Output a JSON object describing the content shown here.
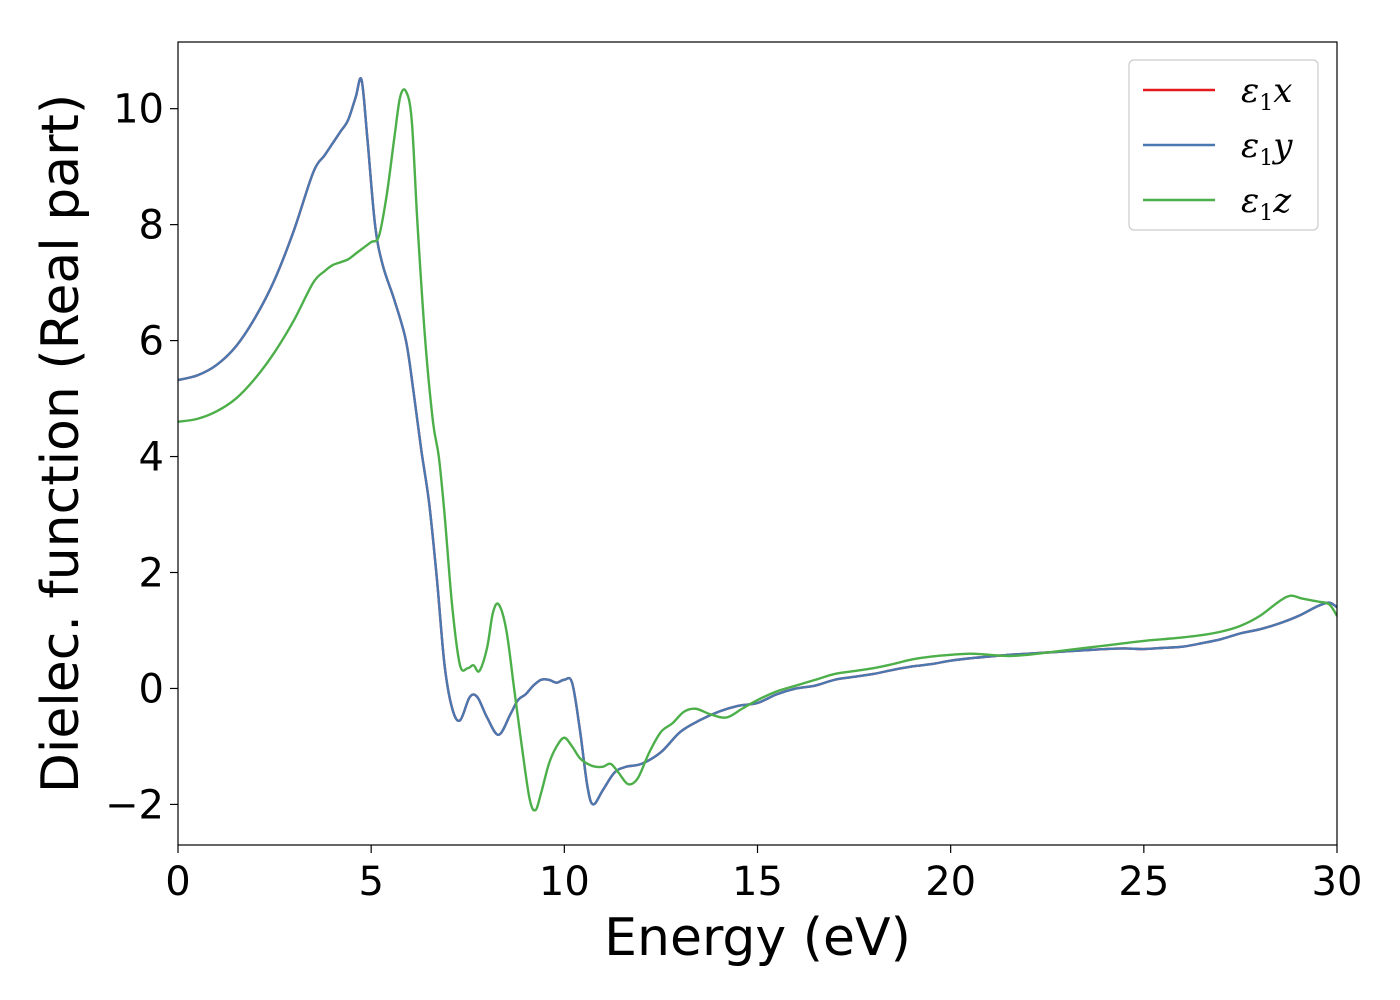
{
  "chart_data": {
    "type": "line",
    "xlabel": "Energy (eV)",
    "ylabel": "Dielec. function (Real part)",
    "xlim": [
      0,
      30
    ],
    "ylim": [
      -2.7,
      11.15
    ],
    "xticks": [
      0,
      5,
      10,
      15,
      20,
      25,
      30
    ],
    "yticks": [
      -2,
      0,
      2,
      4,
      6,
      8,
      10
    ],
    "grid": false,
    "legend_position": "top-right",
    "series": [
      {
        "name": "ε1x",
        "legend_sub": "1",
        "legend_base": "ε",
        "legend_suffix": "x",
        "color": "#e41a1c",
        "x": [
          0,
          0.5,
          1,
          1.5,
          2,
          2.5,
          3,
          3.5,
          3.8,
          4.0,
          4.2,
          4.4,
          4.6,
          4.75,
          4.9,
          5.1,
          5.3,
          5.6,
          5.9,
          6.1,
          6.3,
          6.5,
          6.7,
          6.9,
          7.1,
          7.3,
          7.55,
          7.75,
          8.0,
          8.3,
          8.6,
          8.8,
          9.0,
          9.2,
          9.4,
          9.6,
          9.8,
          10.0,
          10.2,
          10.4,
          10.6,
          10.75,
          11.0,
          11.3,
          11.6,
          12.0,
          12.5,
          13.0,
          13.5,
          14.0,
          14.5,
          15.0,
          15.5,
          16.0,
          16.5,
          17.0,
          17.5,
          18.0,
          18.5,
          19.0,
          19.5,
          20.0,
          20.5,
          21.0,
          21.5,
          22.0,
          22.5,
          23.0,
          23.5,
          24.0,
          24.5,
          25.0,
          25.5,
          26.0,
          26.5,
          27.0,
          27.5,
          28.0,
          28.5,
          29.0,
          29.5,
          29.8,
          30.0
        ],
        "y": [
          5.32,
          5.4,
          5.58,
          5.9,
          6.4,
          7.05,
          7.9,
          8.9,
          9.2,
          9.4,
          9.6,
          9.8,
          10.2,
          10.5,
          9.5,
          8.0,
          7.3,
          6.7,
          6.0,
          5.1,
          4.1,
          3.2,
          1.9,
          0.4,
          -0.35,
          -0.55,
          -0.15,
          -0.15,
          -0.5,
          -0.8,
          -0.45,
          -0.2,
          -0.1,
          0.05,
          0.15,
          0.15,
          0.1,
          0.15,
          0.1,
          -0.7,
          -1.7,
          -2.0,
          -1.75,
          -1.45,
          -1.35,
          -1.3,
          -1.1,
          -0.75,
          -0.55,
          -0.4,
          -0.3,
          -0.25,
          -0.1,
          0.0,
          0.05,
          0.15,
          0.2,
          0.25,
          0.32,
          0.38,
          0.42,
          0.48,
          0.52,
          0.55,
          0.58,
          0.6,
          0.62,
          0.64,
          0.66,
          0.68,
          0.69,
          0.68,
          0.7,
          0.72,
          0.78,
          0.85,
          0.95,
          1.02,
          1.12,
          1.25,
          1.42,
          1.48,
          1.4
        ]
      },
      {
        "name": "ε1y",
        "legend_sub": "1",
        "legend_base": "ε",
        "legend_suffix": "y",
        "color": "#4a78b0",
        "x": [
          0,
          0.5,
          1,
          1.5,
          2,
          2.5,
          3,
          3.5,
          3.8,
          4.0,
          4.2,
          4.4,
          4.6,
          4.75,
          4.9,
          5.1,
          5.3,
          5.6,
          5.9,
          6.1,
          6.3,
          6.5,
          6.7,
          6.9,
          7.1,
          7.3,
          7.55,
          7.75,
          8.0,
          8.3,
          8.6,
          8.8,
          9.0,
          9.2,
          9.4,
          9.6,
          9.8,
          10.0,
          10.2,
          10.4,
          10.6,
          10.75,
          11.0,
          11.3,
          11.6,
          12.0,
          12.5,
          13.0,
          13.5,
          14.0,
          14.5,
          15.0,
          15.5,
          16.0,
          16.5,
          17.0,
          17.5,
          18.0,
          18.5,
          19.0,
          19.5,
          20.0,
          20.5,
          21.0,
          21.5,
          22.0,
          22.5,
          23.0,
          23.5,
          24.0,
          24.5,
          25.0,
          25.5,
          26.0,
          26.5,
          27.0,
          27.5,
          28.0,
          28.5,
          29.0,
          29.5,
          29.8,
          30.0
        ],
        "y": [
          5.32,
          5.4,
          5.58,
          5.9,
          6.4,
          7.05,
          7.9,
          8.9,
          9.2,
          9.4,
          9.6,
          9.8,
          10.2,
          10.5,
          9.5,
          8.0,
          7.3,
          6.7,
          6.0,
          5.1,
          4.1,
          3.2,
          1.9,
          0.4,
          -0.35,
          -0.55,
          -0.15,
          -0.15,
          -0.5,
          -0.8,
          -0.45,
          -0.2,
          -0.1,
          0.05,
          0.15,
          0.15,
          0.1,
          0.15,
          0.1,
          -0.7,
          -1.7,
          -2.0,
          -1.75,
          -1.45,
          -1.35,
          -1.3,
          -1.1,
          -0.75,
          -0.55,
          -0.4,
          -0.3,
          -0.25,
          -0.1,
          0.0,
          0.05,
          0.15,
          0.2,
          0.25,
          0.32,
          0.38,
          0.42,
          0.48,
          0.52,
          0.55,
          0.58,
          0.6,
          0.62,
          0.64,
          0.66,
          0.68,
          0.69,
          0.68,
          0.7,
          0.72,
          0.78,
          0.85,
          0.95,
          1.02,
          1.12,
          1.25,
          1.42,
          1.48,
          1.4
        ]
      },
      {
        "name": "ε1z",
        "legend_sub": "1",
        "legend_base": "ε",
        "legend_suffix": "z",
        "color": "#4daf4a",
        "x": [
          0,
          0.5,
          1,
          1.5,
          2,
          2.5,
          3,
          3.5,
          3.8,
          4.0,
          4.2,
          4.4,
          4.6,
          4.8,
          5.0,
          5.2,
          5.4,
          5.6,
          5.75,
          5.9,
          6.05,
          6.2,
          6.4,
          6.6,
          6.75,
          6.9,
          7.1,
          7.3,
          7.5,
          7.65,
          7.8,
          8.0,
          8.15,
          8.3,
          8.5,
          8.7,
          8.9,
          9.1,
          9.25,
          9.4,
          9.6,
          9.8,
          10.0,
          10.2,
          10.4,
          10.6,
          10.8,
          11.0,
          11.2,
          11.4,
          11.65,
          11.9,
          12.2,
          12.5,
          12.8,
          13.1,
          13.4,
          13.8,
          14.2,
          14.6,
          15.0,
          15.5,
          16.0,
          16.5,
          17.0,
          17.5,
          18.0,
          18.5,
          19.0,
          19.5,
          20.0,
          20.5,
          21.0,
          21.5,
          22.0,
          22.5,
          23.0,
          23.5,
          24.0,
          24.5,
          25.0,
          25.5,
          26.0,
          26.5,
          27.0,
          27.5,
          28.0,
          28.5,
          28.8,
          29.1,
          29.5,
          29.8,
          30.0
        ],
        "y": [
          4.6,
          4.65,
          4.78,
          5.0,
          5.35,
          5.8,
          6.35,
          7.0,
          7.2,
          7.3,
          7.35,
          7.4,
          7.5,
          7.6,
          7.7,
          7.8,
          8.5,
          9.5,
          10.2,
          10.3,
          9.8,
          8.0,
          6.0,
          4.6,
          4.0,
          3.0,
          1.4,
          0.4,
          0.35,
          0.4,
          0.3,
          0.7,
          1.3,
          1.45,
          1.0,
          0.0,
          -1.0,
          -1.9,
          -2.1,
          -1.8,
          -1.3,
          -1.0,
          -0.85,
          -1.0,
          -1.2,
          -1.3,
          -1.35,
          -1.35,
          -1.3,
          -1.45,
          -1.65,
          -1.55,
          -1.1,
          -0.75,
          -0.6,
          -0.4,
          -0.35,
          -0.45,
          -0.5,
          -0.35,
          -0.2,
          -0.05,
          0.05,
          0.15,
          0.25,
          0.3,
          0.35,
          0.42,
          0.5,
          0.55,
          0.58,
          0.6,
          0.58,
          0.56,
          0.58,
          0.62,
          0.66,
          0.7,
          0.74,
          0.78,
          0.82,
          0.85,
          0.88,
          0.92,
          0.98,
          1.08,
          1.25,
          1.5,
          1.6,
          1.55,
          1.5,
          1.45,
          1.25
        ]
      }
    ]
  }
}
